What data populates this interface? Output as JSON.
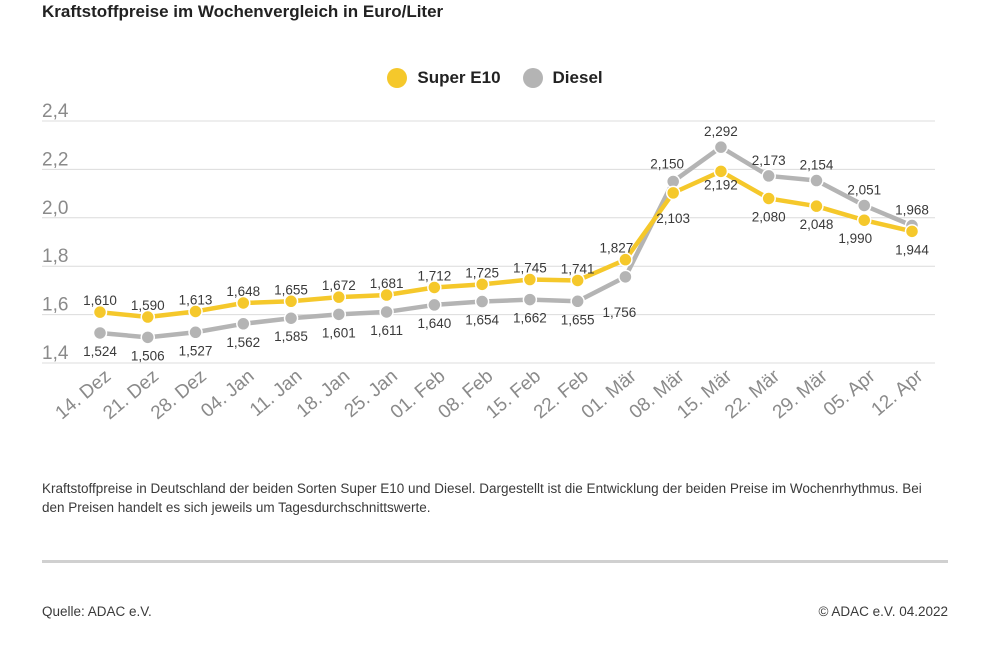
{
  "header": {
    "title": "Kraftstoffpreise im Wochenvergleich in Euro/Liter"
  },
  "chart_data": {
    "type": "line",
    "title": "Kraftstoffpreise im Wochenvergleich in Euro/Liter",
    "categories": [
      "14. Dez",
      "21. Dez",
      "28. Dez",
      "04. Jan",
      "11. Jan",
      "18. Jan",
      "25. Jan",
      "01. Feb",
      "08. Feb",
      "15. Feb",
      "22. Feb",
      "01. Mär",
      "08. Mär",
      "15. Mär",
      "22. Mär",
      "29. Mär",
      "05. Apr",
      "12. Apr"
    ],
    "series": [
      {
        "name": "Super E10",
        "color": "#f5c82b",
        "values": [
          1.61,
          1.59,
          1.613,
          1.648,
          1.655,
          1.672,
          1.681,
          1.712,
          1.725,
          1.745,
          1.741,
          1.827,
          2.103,
          2.192,
          2.08,
          2.048,
          1.99,
          1.944
        ],
        "labels": [
          "1,610",
          "1,590",
          "1,613",
          "1,648",
          "1,655",
          "1,672",
          "1,681",
          "1,712",
          "1,725",
          "1,745",
          "1,741",
          "1,827",
          "2,103",
          "2,192",
          "2,080",
          "2,048",
          "1,990",
          "1,944"
        ]
      },
      {
        "name": "Diesel",
        "color": "#b4b4b4",
        "values": [
          1.524,
          1.506,
          1.527,
          1.562,
          1.585,
          1.601,
          1.611,
          1.64,
          1.654,
          1.662,
          1.655,
          1.756,
          2.15,
          2.292,
          2.173,
          2.154,
          2.051,
          1.968
        ],
        "labels": [
          "1,524",
          "1,506",
          "1,527",
          "1,562",
          "1,585",
          "1,601",
          "1,611",
          "1,640",
          "1,654",
          "1,662",
          "1,655",
          "1,756",
          "2,150",
          "2,292",
          "2,173",
          "2,154",
          "2,051",
          "1,968"
        ]
      }
    ],
    "ylim": [
      1.4,
      2.4
    ],
    "yticks": [
      1.4,
      1.6,
      1.8,
      2.0,
      2.2,
      2.4
    ],
    "ytick_labels": [
      "1,4",
      "1,6",
      "1,8",
      "2,0",
      "2,2",
      "2,4"
    ],
    "grid": true,
    "legend": "top-center",
    "xlabel": "",
    "ylabel": ""
  },
  "legend": {
    "items": [
      "Super E10",
      "Diesel"
    ]
  },
  "footer": {
    "description": "Kraftstoffpreise in Deutschland der beiden Sorten Super E10 und Diesel. Dargestellt ist die Entwicklung der beiden Preise im Wochenrhythmus. Bei den Preisen handelt es sich jeweils um Tagesdurchschnittswerte.",
    "source": "Quelle: ADAC e.V.",
    "copyright": "© ADAC e.V. 04.2022"
  }
}
